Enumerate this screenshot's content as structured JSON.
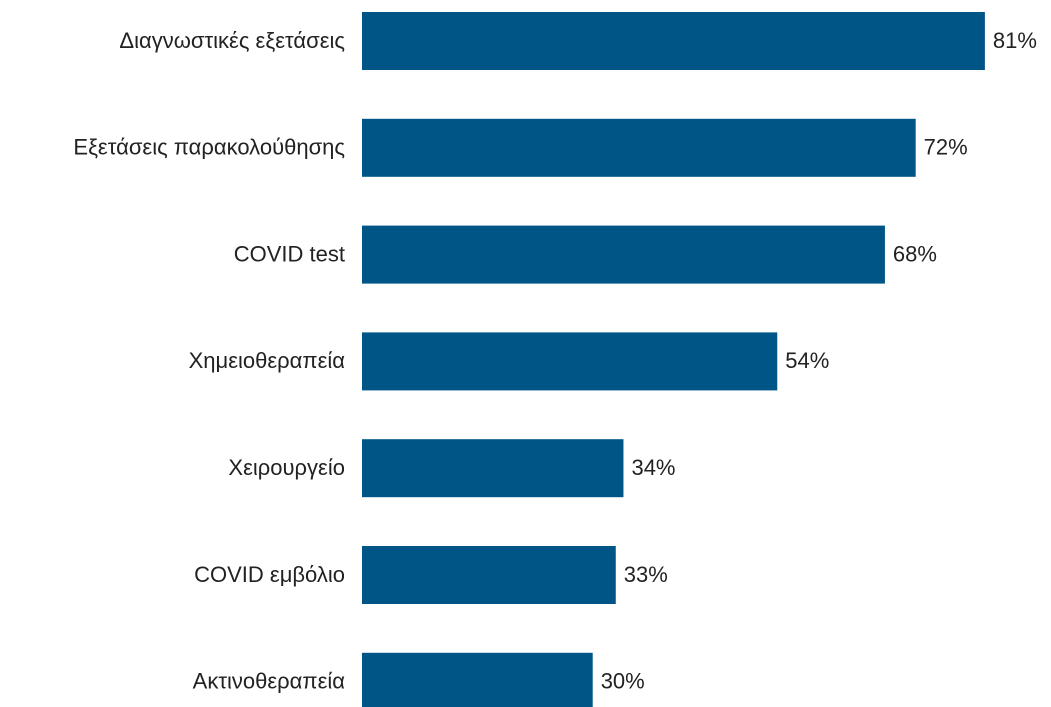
{
  "chart_data": {
    "type": "hbar",
    "categories": [
      "Διαγνωστικές εξετάσεις",
      "Εξετάσεις παρακολούθησης",
      "COVID test",
      "Χημειοθεραπεία",
      "Χειρουργείο",
      "COVID εμβόλιο",
      "Ακτινοθεραπεία"
    ],
    "values": [
      81,
      72,
      68,
      54,
      34,
      33,
      30
    ],
    "value_labels": [
      "81%",
      "72%",
      "68%",
      "54%",
      "34%",
      "33%",
      "30%"
    ],
    "color": "#005587"
  }
}
